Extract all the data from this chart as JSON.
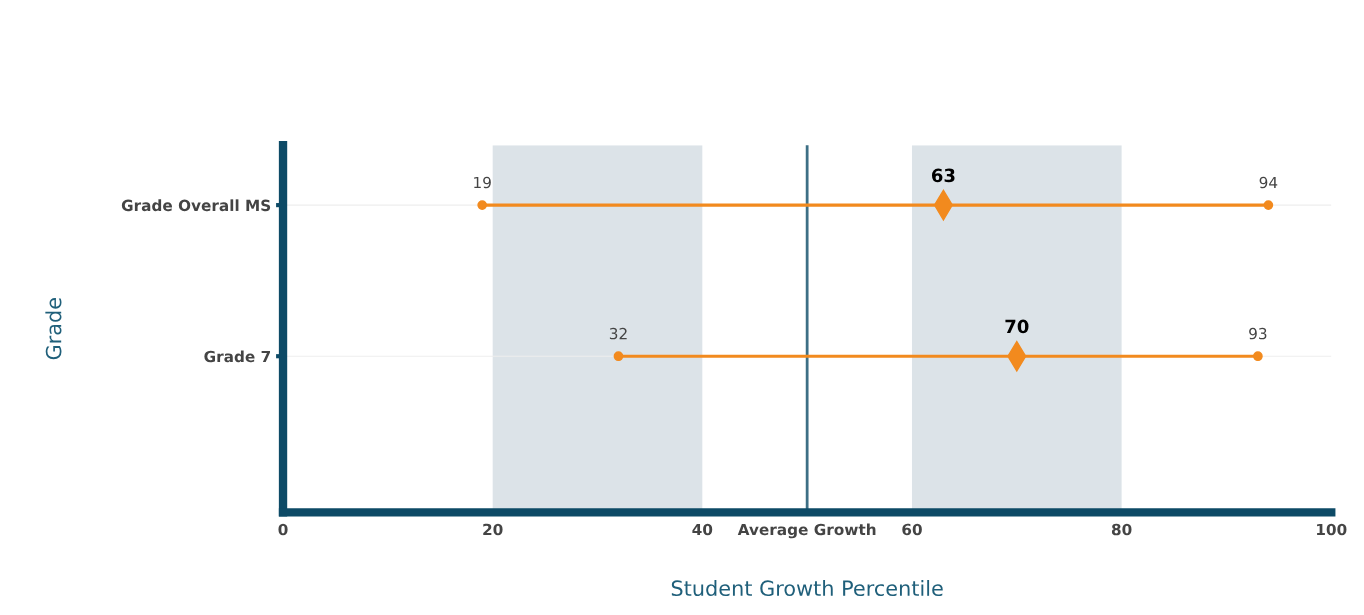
{
  "chart_data": {
    "type": "bar",
    "orientation": "horizontal",
    "xlabel": "Student Growth Percentile",
    "ylabel": "Grade",
    "categories": [
      "Grade Overall MS",
      "Grade 7"
    ],
    "series": [
      {
        "base": [
          19,
          32
        ],
        "values": [
          75,
          61
        ],
        "color": "#f28a1e"
      },
      {
        "type": "scatter",
        "values": [
          19,
          32
        ],
        "color": "#f28a1e",
        "marker": "circle",
        "data_labels": true
      },
      {
        "type": "scatter",
        "values": [
          63,
          70
        ],
        "color": "#f28a1e",
        "marker": "diamond",
        "data_labels": true
      },
      {
        "type": "scatter",
        "values": [
          94,
          93
        ],
        "color": "#f28a1e",
        "marker": "circle",
        "data_labels": true
      }
    ],
    "xlim": [
      0,
      100
    ],
    "xticks": [
      0,
      20,
      40,
      {
        "value": 50,
        "label": "Average Growth"
      },
      60,
      80,
      100
    ],
    "bands": [
      {
        "axis": "x",
        "from": 20,
        "to": 40,
        "color": "#dce3e8"
      },
      {
        "axis": "x",
        "from": 60,
        "to": 80,
        "color": "#dce3e8"
      }
    ],
    "ref_lines": [
      {
        "axis": "x",
        "value": 50,
        "color": "#3d6f85",
        "line_style": "solid"
      }
    ],
    "grid": "y",
    "legend": false
  }
}
